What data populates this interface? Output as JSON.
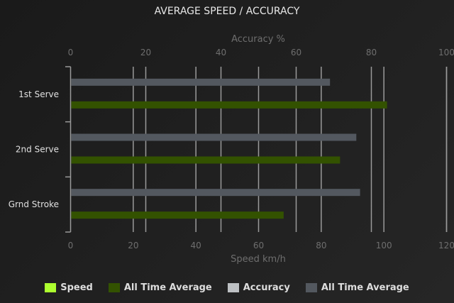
{
  "chart_data": {
    "type": "bar",
    "orientation": "horizontal",
    "title": "AVERAGE SPEED / ACCURACY",
    "categories": [
      "1st Serve",
      "2nd Serve",
      "Grnd Stroke"
    ],
    "top_axis": {
      "label": "Accuracy %",
      "range": [
        0,
        100
      ],
      "ticks": [
        0,
        20,
        40,
        60,
        80,
        100
      ]
    },
    "bottom_axis": {
      "label": "Speed km/h",
      "range": [
        0,
        120
      ],
      "ticks": [
        0,
        20,
        40,
        60,
        80,
        100,
        120
      ]
    },
    "grid": true,
    "legend_position": "bottom",
    "series": [
      {
        "name": "Speed",
        "color": "#adff2f",
        "axis": "bottom",
        "values": [
          null,
          null,
          null
        ]
      },
      {
        "name": "All Time Average",
        "color": "#335200",
        "axis": "bottom",
        "values": [
          101,
          86,
          68
        ]
      },
      {
        "name": "Accuracy",
        "color": "#bdc0c3",
        "axis": "top",
        "values": [
          null,
          null,
          null
        ]
      },
      {
        "name": "All Time Average",
        "color": "#53585f",
        "axis": "top",
        "values": [
          69,
          76,
          77
        ]
      }
    ]
  }
}
